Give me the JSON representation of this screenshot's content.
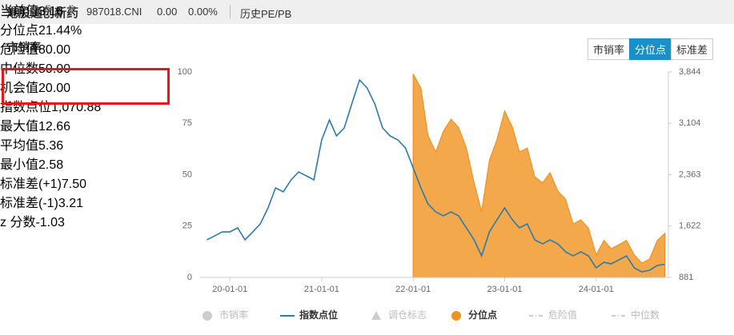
{
  "header": {
    "title": "港股通创新药",
    "code": "987018.CNI",
    "change": "0.00",
    "change_pct": "0.00%",
    "tab": "历史PE/PB"
  },
  "section_title": "市销率",
  "buttons": [
    {
      "label": "市销率",
      "active": false
    },
    {
      "label": "分位点",
      "active": true
    },
    {
      "label": "标准差",
      "active": false
    }
  ],
  "stats": {
    "highlighted": [
      {
        "label": "当前值",
        "value": "3.16"
      },
      {
        "label": "分位点",
        "value": "21.44%"
      }
    ],
    "group1": [
      {
        "label": "危险值",
        "value": "80.00",
        "gear": true
      },
      {
        "label": "中位数",
        "value": "50.00",
        "gear": false
      },
      {
        "label": "机会值",
        "value": "20.00",
        "gear": true
      },
      {
        "label": "指数点位",
        "value": "1,070.88",
        "gear": false
      }
    ],
    "group2": [
      {
        "label": "最大值",
        "value": "12.66",
        "gear": false
      },
      {
        "label": "平均值",
        "value": "5.36",
        "gear": false
      },
      {
        "label": "最小值",
        "value": "2.58",
        "gear": false
      },
      {
        "label": "标准差(+1)",
        "value": "7.50",
        "gear": true
      },
      {
        "label": "标准差(-1)",
        "value": "3.21",
        "gear": false
      },
      {
        "label": "z 分数",
        "value": "-1.03",
        "gear": false
      }
    ]
  },
  "chart_data": {
    "type": "line-area",
    "x": [
      "19-10-01",
      "19-11-01",
      "19-12-01",
      "20-01-01",
      "20-02-01",
      "20-03-01",
      "20-04-01",
      "20-05-01",
      "20-06-01",
      "20-07-01",
      "20-08-01",
      "20-09-01",
      "20-10-01",
      "20-11-01",
      "20-12-01",
      "21-01-01",
      "21-02-01",
      "21-03-01",
      "21-04-01",
      "21-05-01",
      "21-06-01",
      "21-07-01",
      "21-08-01",
      "21-09-01",
      "21-10-01",
      "21-11-01",
      "21-12-01",
      "22-01-01",
      "22-02-01",
      "22-03-01",
      "22-04-01",
      "22-05-01",
      "22-06-01",
      "22-07-01",
      "22-08-01",
      "22-09-01",
      "22-10-01",
      "22-11-01",
      "22-12-01",
      "23-01-01",
      "23-02-01",
      "23-03-01",
      "23-04-01",
      "23-05-01",
      "23-06-01",
      "23-07-01",
      "23-08-01",
      "23-09-01",
      "23-10-01",
      "23-11-01",
      "23-12-01",
      "24-01-01",
      "24-02-01",
      "24-03-01",
      "24-04-01",
      "24-05-01",
      "24-06-01",
      "24-07-01",
      "24-08-01",
      "24-09-01",
      "24-10-01"
    ],
    "xlim": [
      "19-09-20",
      "24-10-15"
    ],
    "xticks": [
      "20-01-01",
      "21-01-01",
      "22-01-01",
      "23-01-01",
      "24-01-01"
    ],
    "ylim": [
      0,
      100
    ],
    "yticks": [
      0,
      25,
      50,
      75,
      100
    ],
    "y2lim": [
      881,
      3844
    ],
    "y2ticks": [
      881,
      {
        "value": 1622,
        "label": "1,622"
      },
      {
        "value": 2363,
        "label": "2,363"
      },
      {
        "value": 3104,
        "label": "3,104"
      },
      {
        "value": 3844,
        "label": "3,844"
      }
    ],
    "series": [
      {
        "name": "市销率",
        "color": "#c8c8c8",
        "symbol": "circle",
        "visible": false
      },
      {
        "name": "指数点位",
        "color": "#2b7bab",
        "symbol": "line",
        "visible": true,
        "axis": "y2",
        "values": [
          1423,
          1480,
          1538,
          1538,
          1596,
          1423,
          1538,
          1653,
          1884,
          2172,
          2115,
          2288,
          2403,
          2345,
          2288,
          2864,
          3152,
          2922,
          3037,
          3383,
          3729,
          3614,
          3383,
          3037,
          2922,
          2864,
          2749,
          2461,
          2172,
          1942,
          1826,
          1769,
          1826,
          1769,
          1596,
          1423,
          1192,
          1538,
          1711,
          1884,
          1711,
          1596,
          1653,
          1423,
          1365,
          1423,
          1365,
          1250,
          1192,
          1250,
          1192,
          1019,
          1100,
          1077,
          1135,
          1192,
          1019,
          962,
          985,
          1054,
          1070.88
        ]
      },
      {
        "name": "调仓标志",
        "color": "#c8c8c8",
        "symbol": "triangle",
        "visible": false
      },
      {
        "name": "分位点",
        "color": "#f0921e",
        "symbol": "circle",
        "visible": true,
        "values": [
          null,
          null,
          null,
          null,
          null,
          null,
          null,
          null,
          null,
          null,
          null,
          null,
          null,
          null,
          null,
          null,
          null,
          null,
          null,
          null,
          null,
          null,
          null,
          null,
          null,
          null,
          null,
          99,
          92,
          69,
          61,
          71,
          77,
          73,
          63,
          46,
          32,
          57,
          67,
          81,
          73,
          61,
          63,
          49,
          46,
          51,
          42,
          38,
          26,
          28,
          24,
          11,
          18,
          14,
          16,
          18,
          11,
          7,
          9,
          18,
          21.44
        ]
      },
      {
        "name": "危险值",
        "color": "#c8c8c8",
        "symbol": "dash",
        "visible": false
      },
      {
        "name": "中位数",
        "color": "#c8c8c8",
        "symbol": "dash",
        "visible": false
      }
    ]
  }
}
